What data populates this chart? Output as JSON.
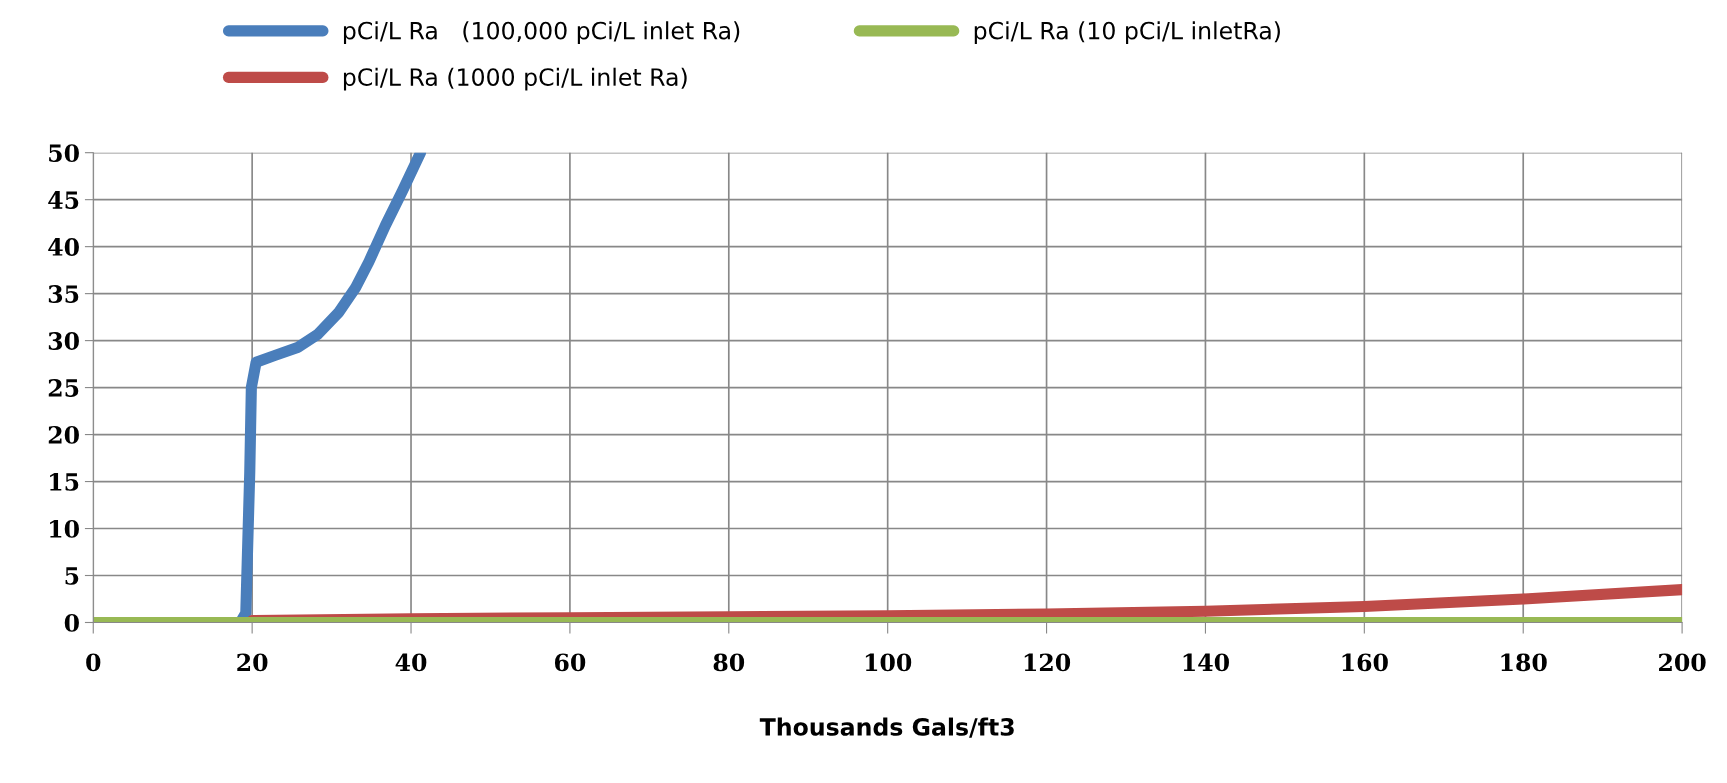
{
  "chart_data": {
    "type": "line",
    "xlabel": "Thousands Gals/ft3",
    "xlim": [
      0,
      200
    ],
    "xticks": [
      0,
      20,
      40,
      60,
      80,
      100,
      120,
      140,
      160,
      180,
      200
    ],
    "ylim": [
      0,
      50
    ],
    "yticks": [
      0,
      5,
      10,
      15,
      20,
      25,
      30,
      35,
      40,
      45,
      50
    ],
    "grid": true,
    "legend": "top",
    "marker": "none",
    "line_style": "solid",
    "series": [
      {
        "name": "pCi/L Ra   (100,000 pCi/L inlet Ra)",
        "color": "#4a7ebb",
        "x": [
          0,
          18.5,
          19.2,
          19.7,
          19.9,
          20.5,
          22.8,
          25.8,
          28.3,
          30.9,
          33.0,
          34.7,
          36.8,
          38.9,
          41.2
        ],
        "values": [
          0,
          0,
          1,
          16,
          25,
          27.7,
          28.4,
          29.3,
          30.7,
          33,
          35.6,
          38.4,
          42.3,
          45.9,
          50
        ]
      },
      {
        "name": "pCi/L Ra (1000 pCi/L inlet Ra)",
        "color": "#be4b48",
        "x": [
          20,
          40,
          60,
          80,
          100,
          120,
          140,
          160,
          180,
          200
        ],
        "values": [
          0.2,
          0.4,
          0.5,
          0.6,
          0.7,
          0.9,
          1.2,
          1.7,
          2.5,
          3.5
        ]
      },
      {
        "name": "pCi/L Ra (10 pCi/L inletRa)",
        "color": "#98b954",
        "x": [
          0,
          200
        ],
        "values": [
          0,
          0
        ]
      }
    ]
  }
}
